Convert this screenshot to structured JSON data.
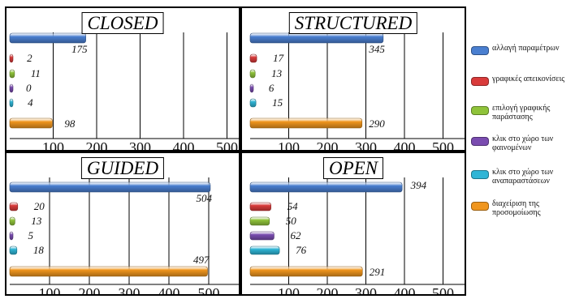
{
  "legend": {
    "items": [
      {
        "label": "αλλαγή παραμέτρων",
        "color": "#4a7fd0"
      },
      {
        "label": "γραφικές απεικονίσεις",
        "color": "#d93b3b"
      },
      {
        "label": "επιλογή γραφικής παράστασης",
        "color": "#8fc33a"
      },
      {
        "label": "κλικ στο χώρο των φαινομένων",
        "color": "#7a4cb0"
      },
      {
        "label": "κλικ στο χώρο των αναπαραστάσεων",
        "color": "#2fb5d6"
      },
      {
        "label": "διαχείριση της προσομοίωσης",
        "color": "#f0961e"
      }
    ]
  },
  "chart_data": [
    {
      "type": "bar",
      "title": "CLOSED",
      "orientation": "horizontal",
      "xlim": [
        0,
        500
      ],
      "ticks": [
        "100",
        "200",
        "300",
        "400",
        "500"
      ],
      "values": [
        175,
        2,
        11,
        0,
        4,
        98
      ],
      "value_labels": [
        "175",
        "2",
        "11",
        "0",
        "4",
        "98"
      ]
    },
    {
      "type": "bar",
      "title": "STRUCTURED",
      "orientation": "horizontal",
      "xlim": [
        0,
        500
      ],
      "ticks": [
        "100",
        "200",
        "300",
        "400",
        "500"
      ],
      "values": [
        345,
        17,
        13,
        6,
        15,
        290
      ],
      "value_labels": [
        "345",
        "17",
        "13",
        "6",
        "15",
        "290"
      ]
    },
    {
      "type": "bar",
      "title": "GUIDED",
      "orientation": "horizontal",
      "xlim": [
        0,
        500
      ],
      "ticks": [
        "100",
        "200",
        "300",
        "400",
        "500"
      ],
      "values": [
        504,
        20,
        13,
        5,
        18,
        497
      ],
      "value_labels": [
        "504",
        "20",
        "13",
        "5",
        "18",
        "497"
      ]
    },
    {
      "type": "bar",
      "title": "OPEN",
      "orientation": "horizontal",
      "xlim": [
        0,
        500
      ],
      "ticks": [
        "100",
        "200",
        "300",
        "400",
        "500"
      ],
      "values": [
        394,
        54,
        50,
        62,
        76,
        291
      ],
      "value_labels": [
        "394",
        "54",
        "50",
        "62",
        "76",
        "291"
      ]
    }
  ]
}
